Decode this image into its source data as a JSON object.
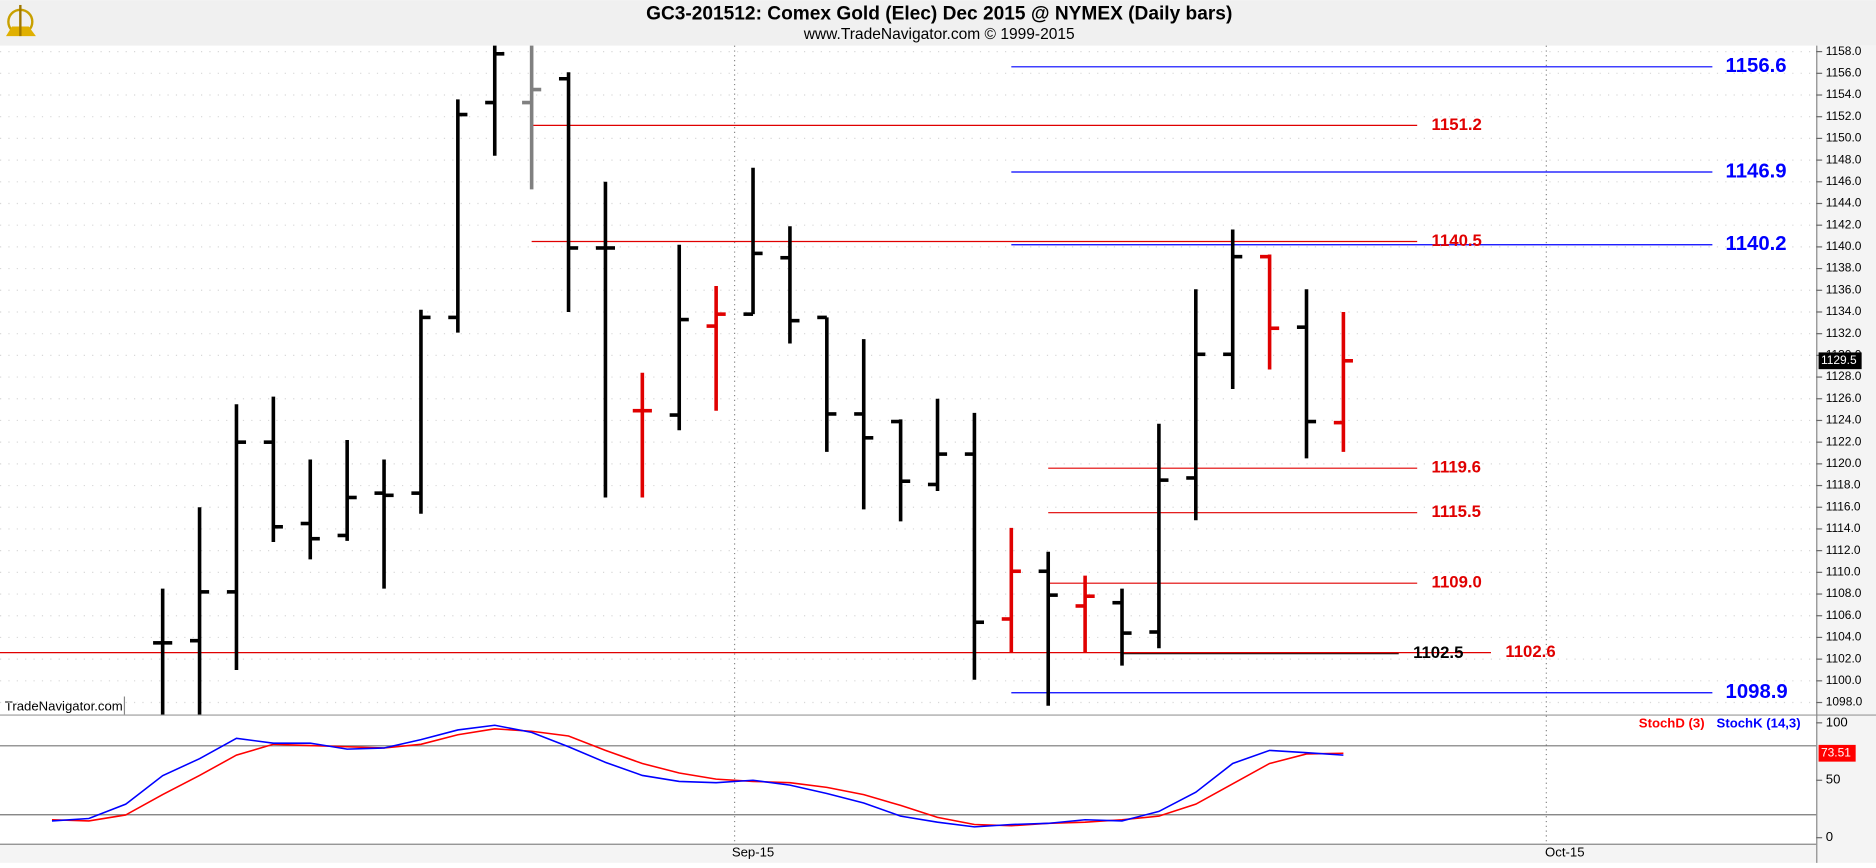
{
  "chart_data": [
    {
      "type": "ohlc",
      "title": "GC3-201512:  Comex Gold (Elec) Dec 2015 @ NYMEX  (Daily bars)",
      "subtitle": "www.TradeNavigator.com © 1999-2015",
      "watermark": "TradeNavigator.com",
      "ylim": [
        1096.9,
        1158.55
      ],
      "yticks": [
        {
          "value": 1098,
          "label": "1098.0"
        },
        {
          "value": 1100,
          "label": "1100.0"
        },
        {
          "value": 1102,
          "label": "1102.0"
        },
        {
          "value": 1104,
          "label": "1104.0"
        },
        {
          "value": 1106,
          "label": "1106.0"
        },
        {
          "value": 1108,
          "label": "1108.0"
        },
        {
          "value": 1110,
          "label": "1110.0"
        },
        {
          "value": 1112,
          "label": "1112.0"
        },
        {
          "value": 1114,
          "label": "1114.0"
        },
        {
          "value": 1116,
          "label": "1116.0"
        },
        {
          "value": 1118,
          "label": "1118.0"
        },
        {
          "value": 1120,
          "label": "1120.0"
        },
        {
          "value": 1122,
          "label": "1122.0"
        },
        {
          "value": 1124,
          "label": "1124.0"
        },
        {
          "value": 1126,
          "label": "1126.0"
        },
        {
          "value": 1128,
          "label": "1128.0"
        },
        {
          "value": 1130,
          "label": "1130.0"
        },
        {
          "value": 1132,
          "label": "1132.0"
        },
        {
          "value": 1134,
          "label": "1134.0"
        },
        {
          "value": 1136,
          "label": "1136.0"
        },
        {
          "value": 1138,
          "label": "1138.0"
        },
        {
          "value": 1140,
          "label": "1140.0"
        },
        {
          "value": 1142,
          "label": "1142.0"
        },
        {
          "value": 1144,
          "label": "1144.0"
        },
        {
          "value": 1146,
          "label": "1146.0"
        },
        {
          "value": 1148,
          "label": "1148.0"
        },
        {
          "value": 1150,
          "label": "1150.0"
        },
        {
          "value": 1152,
          "label": "1152.0"
        },
        {
          "value": 1154,
          "label": "1154.0"
        },
        {
          "value": 1156,
          "label": "1156.0"
        },
        {
          "value": 1158,
          "label": "1158.0"
        }
      ],
      "open": [
        null,
        null,
        null,
        null,
        1103.5,
        1103.7,
        1108.2,
        1122,
        1114.5,
        1113.4,
        1117.3,
        1117.3,
        1133.5,
        1153.3,
        1153.3,
        1155.5,
        1139.9,
        1124.9,
        1124.5,
        1132.7,
        1133.8,
        1139,
        1133.5,
        1124.6,
        1123.9,
        1118.1,
        1120.9,
        1105.7,
        1110.1,
        1106.9,
        1107.2,
        1104.5,
        1118.7,
        1130.1,
        1139.1,
        1132.6,
        1123.8,
        null,
        null,
        null,
        null,
        null,
        null,
        null,
        null,
        null,
        null,
        null,
        null
      ],
      "high": [
        null,
        null,
        null,
        null,
        1108.5,
        1116,
        1125.5,
        1126.2,
        1120.4,
        1122.2,
        1120.4,
        1134.2,
        1153.6,
        1158.6,
        1158.6,
        1156.1,
        1146,
        1128.4,
        1140.2,
        1136.4,
        1147.3,
        1141.9,
        1133.5,
        1131.5,
        1124.1,
        1126,
        1124.7,
        1114.1,
        1111.9,
        1109.7,
        1108.5,
        1123.7,
        1136.1,
        1141.6,
        1139.3,
        1136.1,
        1134,
        null,
        null,
        null,
        null,
        null,
        null,
        null,
        null,
        null,
        null,
        null,
        null
      ],
      "low": [
        null,
        null,
        null,
        null,
        1096.5,
        1096.5,
        1101,
        1112.8,
        1111.2,
        1112.9,
        1108.5,
        1115.4,
        1132.1,
        1148.4,
        1145.3,
        1134,
        1116.9,
        1116.9,
        1123.1,
        1124.9,
        1133.8,
        1131.1,
        1121.1,
        1115.8,
        1114.7,
        1117.5,
        1100.1,
        1102.6,
        1097.7,
        1102.6,
        1101.4,
        1103,
        1114.8,
        1126.9,
        1128.7,
        1120.5,
        1121.1,
        null,
        null,
        null,
        null,
        null,
        null,
        null,
        null,
        null,
        null,
        null,
        null
      ],
      "close": [
        null,
        null,
        null,
        null,
        1103.5,
        1108.2,
        1122,
        1114.2,
        1113.1,
        1116.9,
        1117.1,
        1133.5,
        1152.2,
        1157.8,
        1154.5,
        1139.9,
        1139.9,
        1124.9,
        1133.3,
        1133.8,
        1139.4,
        1133.2,
        1124.6,
        1122.4,
        1118.4,
        1120.9,
        1105.4,
        1110.1,
        1107.9,
        1107.8,
        1104.4,
        1118.5,
        1130.1,
        1139.1,
        1132.5,
        1123.9,
        1129.5,
        null,
        null,
        null,
        null,
        null,
        null,
        null,
        null,
        null,
        null,
        null,
        null
      ],
      "bar_colors": [
        null,
        null,
        null,
        null,
        "#000000",
        "#000000",
        "#000000",
        "#000000",
        "#000000",
        "#000000",
        "#000000",
        "#000000",
        "#000000",
        "#000000",
        "#808080",
        "#000000",
        "#000000",
        "#e00000",
        "#000000",
        "#e00000",
        "#000000",
        "#000000",
        "#000000",
        "#000000",
        "#000000",
        "#000000",
        "#000000",
        "#e00000",
        "#000000",
        "#e00000",
        "#000000",
        "#000000",
        "#000000",
        "#000000",
        "#e00000",
        "#000000",
        "#e00000",
        null,
        null,
        null,
        null,
        null,
        null,
        null,
        null,
        null,
        null,
        null,
        null
      ],
      "levels": [
        {
          "value": 1156.6,
          "color": "#0000ff",
          "start": 27,
          "end": 46
        },
        {
          "value": 1151.2,
          "color": "#e00000",
          "start": 14,
          "end": 38
        },
        {
          "value": 1146.9,
          "color": "#0000ff",
          "start": 27,
          "end": 46
        },
        {
          "value": 1140.5,
          "color": "#e00000",
          "start": 14,
          "end": 38
        },
        {
          "value": 1140.2,
          "color": "#0000ff",
          "start": 27,
          "end": 46
        },
        {
          "value": 1119.6,
          "color": "#e00000",
          "start": 28,
          "end": 38
        },
        {
          "value": 1115.5,
          "color": "#e00000",
          "start": 28,
          "end": 38
        },
        {
          "value": 1109,
          "label": "1109.0",
          "color": "#e00000",
          "start": 28,
          "end": 38
        },
        {
          "value": 1102.5,
          "color": "#000000",
          "start": 30,
          "end": 37.5
        },
        {
          "value": 1102.6,
          "color": "#e00000",
          "end": 40
        },
        {
          "value": 1098.9,
          "color": "#0000ff",
          "start": 27,
          "end": 46
        }
      ]
    },
    {
      "type": "line",
      "categories": [
        null,
        null,
        null,
        null,
        null,
        null,
        null,
        null,
        null,
        null,
        null,
        null,
        null,
        null,
        null,
        null,
        null,
        null,
        null,
        null,
        "Sep-15",
        null,
        null,
        null,
        null,
        null,
        null,
        null,
        null,
        null,
        null,
        null,
        null,
        null,
        null,
        null,
        null,
        null,
        null,
        null,
        null,
        null,
        "Oct-15",
        null,
        null,
        null,
        null,
        null,
        null
      ],
      "ylim": [
        -5.2,
        106.25
      ],
      "yticks": [
        0,
        50,
        100
      ],
      "levels": [
        20,
        80
      ],
      "series": [
        {
          "name": "StochD (3)",
          "color": "#ff0000",
          "values": [
            null,
            15.6,
            14.6,
            19.8,
            37.5,
            54.2,
            71.9,
            81.3,
            80.2,
            79.2,
            78.1,
            81.3,
            89.6,
            94.8,
            92.7,
            88.5,
            76,
            64.6,
            56.3,
            51,
            49,
            47.9,
            43.8,
            37.5,
            28.1,
            17.7,
            11.5,
            10.4,
            12.5,
            13.5,
            15.6,
            18.8,
            29.2,
            46.9,
            64.6,
            72.9,
            73.51,
            null,
            null,
            null,
            null,
            null,
            null,
            null,
            null,
            null,
            null,
            null,
            null
          ]
        },
        {
          "name": "StochK (14,3)",
          "color": "#0000ff",
          "values": [
            null,
            14.6,
            16.7,
            29.2,
            54,
            68.8,
            86.5,
            82.3,
            82.3,
            77.1,
            78.1,
            85.4,
            93.8,
            97.9,
            91.7,
            79.2,
            65.6,
            54.2,
            49,
            47.9,
            50,
            45.8,
            38.5,
            30.2,
            18.8,
            13.5,
            9.4,
            11.5,
            12.5,
            15.6,
            14.6,
            22.9,
            39.6,
            64.6,
            76,
            74,
            71.9,
            null,
            null,
            null,
            null,
            null,
            null,
            null,
            null,
            null,
            null,
            null,
            null
          ]
        }
      ]
    }
  ]
}
